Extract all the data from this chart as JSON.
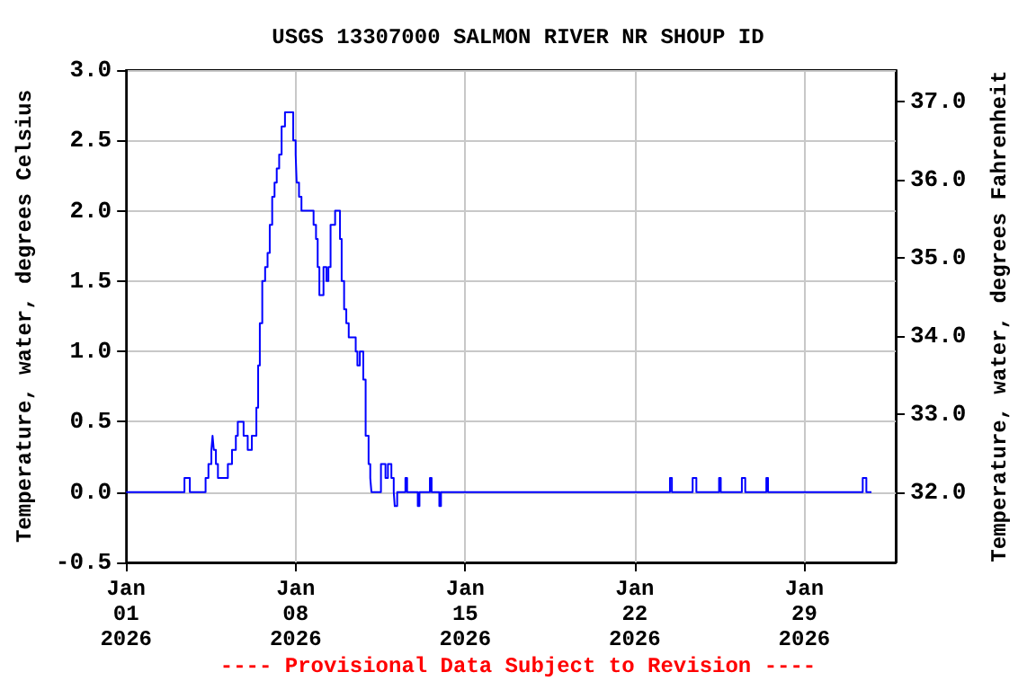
{
  "chart_data": {
    "type": "step",
    "title": "USGS 13307000 SALMON RIVER NR SHOUP ID",
    "ylabel": "Temperature, water, degrees Celsius",
    "y2label": "Temperature, water, degrees Fahrenheit",
    "annotations": [
      "---- Provisional Data Subject to Revision ----"
    ],
    "x": [
      "2026-01-01T00:00",
      "2026-01-03T09:50",
      "2026-01-03T15:10",
      "2026-01-04T06:45",
      "2026-01-04T09:35",
      "2026-01-04T12:30",
      "2026-01-04T13:40",
      "2026-01-04T14:55",
      "2026-01-04T17:00",
      "2026-01-04T19:00",
      "2026-01-05T04:50",
      "2026-01-05T08:55",
      "2026-01-05T12:45",
      "2026-01-05T14:40",
      "2026-01-05T20:25",
      "2026-01-06T00:30",
      "2026-01-06T04:35",
      "2026-01-06T09:05",
      "2026-01-06T10:50",
      "2026-01-06T12:30",
      "2026-01-06T14:55",
      "2026-01-06T17:45",
      "2026-01-06T20:10",
      "2026-01-06T22:20",
      "2026-01-07T00:45",
      "2026-01-07T03:05",
      "2026-01-07T05:15",
      "2026-01-07T07:40",
      "2026-01-07T10:05",
      "2026-01-07T13:25",
      "2026-01-07T21:35",
      "2026-01-08T00:00",
      "2026-01-08T01:00",
      "2026-01-08T03:20",
      "2026-01-08T05:45",
      "2026-01-08T17:45",
      "2026-01-08T20:10",
      "2026-01-08T21:50",
      "2026-01-08T23:30",
      "2026-01-09T03:35",
      "2026-01-09T06:30",
      "2026-01-09T08:25",
      "2026-01-09T10:35",
      "2026-01-09T15:05",
      "2026-01-09T19:55",
      "2026-01-09T21:35",
      "2026-01-10T00:00",
      "2026-01-10T02:10",
      "2026-01-10T04:35",
      "2026-01-10T11:30",
      "2026-01-10T13:10",
      "2026-01-10T15:35",
      "2026-01-10T19:00",
      "2026-01-10T21:20",
      "2026-01-11T00:15",
      "2026-01-11T01:55",
      "2026-01-11T03:05",
      "2026-01-11T12:30",
      "2026-01-11T17:00",
      "2026-01-11T19:25",
      "2026-01-11T22:50",
      "2026-01-12T01:10",
      "2026-01-12T02:10",
      "2026-01-12T04:35",
      "2026-01-12T12:45",
      "2026-01-12T14:25",
      "2026-01-13T01:00",
      "2026-01-13T02:40",
      "2026-01-13T13:00",
      "2026-01-13T14:40",
      "2026-01-13T22:20",
      "2026-01-14T00:00",
      "2026-01-23T10:50",
      "2026-01-23T12:45",
      "2026-01-24T09:20",
      "2026-01-24T13:00",
      "2026-01-25T11:30",
      "2026-01-25T13:10",
      "2026-01-26T10:05",
      "2026-01-26T13:25",
      "2026-01-27T10:20",
      "2026-01-27T12:00",
      "2026-01-31T09:50",
      "2026-01-31T13:25",
      "2026-01-31T18:30"
    ],
    "series": [
      {
        "color": "#0000ff",
        "values": [
          0,
          0.1,
          0,
          0.1,
          0.2,
          0.3,
          0.4,
          0.3,
          0.2,
          0.1,
          0.2,
          0.3,
          0.4,
          0.5,
          0.4,
          0.3,
          0.4,
          0.6,
          0.9,
          1.2,
          1.5,
          1.6,
          1.7,
          1.9,
          2.1,
          2.2,
          2.3,
          2.4,
          2.6,
          2.7,
          2.5,
          2.4,
          2.2,
          2.1,
          2.0,
          1.9,
          1.8,
          1.6,
          1.4,
          1.6,
          1.5,
          1.6,
          1.9,
          2.0,
          1.8,
          1.5,
          1.3,
          1.2,
          1.1,
          1.0,
          0.9,
          1.0,
          0.8,
          0.4,
          0.2,
          0.1,
          0,
          0.2,
          0.1,
          0.2,
          0.1,
          0,
          -0.1,
          0,
          0.1,
          0,
          -0.1,
          0,
          0.1,
          0,
          -0.1,
          0,
          0.1,
          0,
          0.1,
          0,
          0.1,
          0,
          0.1,
          0,
          0.1,
          0,
          0.1,
          0,
          0
        ]
      }
    ],
    "xlim": [
      "2026-01-01T00:00",
      "2026-02-01T18:30"
    ],
    "xticks": [
      {
        "value": "2026-01-01",
        "label": "Jan\n01\n2026"
      },
      {
        "value": "2026-01-08",
        "label": "Jan\n08\n2026"
      },
      {
        "value": "2026-01-15",
        "label": "Jan\n15\n2026"
      },
      {
        "value": "2026-01-22",
        "label": "Jan\n22\n2026"
      },
      {
        "value": "2026-01-29",
        "label": "Jan\n29\n2026"
      }
    ],
    "ylim": [
      -0.5,
      3.0
    ],
    "yticks": [
      {
        "value": -0.5,
        "label": "-0.5"
      },
      {
        "value": 0,
        "label": "0.0"
      },
      {
        "value": 0.5,
        "label": "0.5"
      },
      {
        "value": 1,
        "label": "1.0"
      },
      {
        "value": 1.5,
        "label": "1.5"
      },
      {
        "value": 2,
        "label": "2.0"
      },
      {
        "value": 2.5,
        "label": "2.5"
      },
      {
        "value": 3,
        "label": "3.0"
      }
    ],
    "y2lim": [
      31.1,
      37.4
    ],
    "y2ticks": [
      {
        "value": 32,
        "label": "32.0"
      },
      {
        "value": 33,
        "label": "33.0"
      },
      {
        "value": 34,
        "label": "34.0"
      },
      {
        "value": 35,
        "label": "35.0"
      },
      {
        "value": 36,
        "label": "36.0"
      },
      {
        "value": 37,
        "label": "37.0"
      }
    ],
    "grid": true,
    "line_style": "solid",
    "marker": "none"
  }
}
